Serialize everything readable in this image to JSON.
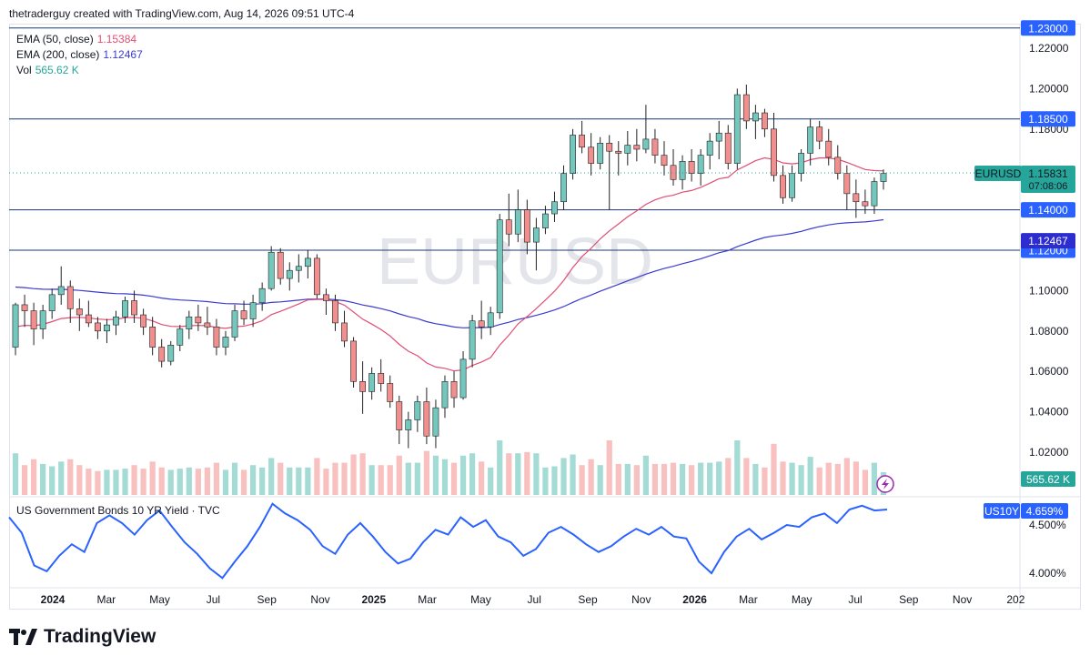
{
  "header": {
    "attribution": "thetraderguy created with TradingView.com, Aug 14, 2026 09:51 UTC-4"
  },
  "legend": {
    "ema50": {
      "label": "EMA (50, close)",
      "value": "1.15384",
      "color": "#e04e74"
    },
    "ema200": {
      "label": "EMA (200, close)",
      "value": "1.12467",
      "color": "#3b3bd1"
    },
    "vol": {
      "label": "Vol",
      "value": "565.62 K",
      "color": "#26a69a"
    }
  },
  "watermark": "EURUSD",
  "price_axis": {
    "ticks": [
      "1.22000",
      "1.20000",
      "1.18000",
      "1.10000",
      "1.08000",
      "1.06000",
      "1.04000",
      "1.02000"
    ]
  },
  "level_labels": [
    {
      "text": "1.23000",
      "price": 1.23,
      "bg": "#2962ff"
    },
    {
      "text": "1.18500",
      "price": 1.185,
      "bg": "#2962ff"
    },
    {
      "text": "1.14000",
      "price": 1.14,
      "bg": "#2962ff"
    },
    {
      "text": "1.12000",
      "price": 1.12,
      "bg": "#2962ff"
    }
  ],
  "ema_labels": [
    {
      "text": "1.15384",
      "price": 1.15384,
      "bg": "#e91e63"
    },
    {
      "text": "1.12467",
      "price": 1.12467,
      "bg": "#2c2ccf"
    }
  ],
  "current": {
    "symbol": "EURUSD",
    "price": "1.15831",
    "countdown": "07:08:06",
    "bg": "#26a69a"
  },
  "volume_badge": "565.62 K",
  "lower_pane": {
    "title": "US Government Bonds 10 YR Yield · TVC",
    "symbol": "US10Y",
    "value": "4.659%",
    "ticks": [
      "4.500%",
      "4.000%"
    ],
    "color": "#2962ff"
  },
  "time_axis": [
    "2024",
    "Mar",
    "May",
    "Jul",
    "Sep",
    "Nov",
    "2025",
    "Mar",
    "May",
    "Jul",
    "Sep",
    "Nov",
    "2026",
    "Mar",
    "May",
    "Jul",
    "Sep",
    "Nov",
    "202"
  ],
  "brand": "TradingView",
  "chart_data": {
    "type": "candlestick",
    "title": "EURUSD",
    "ylim": [
      1.0,
      1.235
    ],
    "horizontal_levels": [
      1.23,
      1.185,
      1.14,
      1.12
    ],
    "candles_ohlc": [
      [
        1.072,
        1.094,
        1.068,
        1.093
      ],
      [
        1.093,
        1.098,
        1.082,
        1.09
      ],
      [
        1.09,
        1.094,
        1.073,
        1.081
      ],
      [
        1.081,
        1.093,
        1.076,
        1.09
      ],
      [
        1.09,
        1.101,
        1.086,
        1.098
      ],
      [
        1.098,
        1.112,
        1.093,
        1.102
      ],
      [
        1.102,
        1.105,
        1.084,
        1.091
      ],
      [
        1.091,
        1.096,
        1.08,
        1.088
      ],
      [
        1.088,
        1.095,
        1.082,
        1.084
      ],
      [
        1.084,
        1.087,
        1.076,
        1.08
      ],
      [
        1.08,
        1.086,
        1.074,
        1.083
      ],
      [
        1.083,
        1.09,
        1.078,
        1.087
      ],
      [
        1.087,
        1.097,
        1.084,
        1.095
      ],
      [
        1.095,
        1.1,
        1.084,
        1.088
      ],
      [
        1.088,
        1.091,
        1.078,
        1.082
      ],
      [
        1.082,
        1.087,
        1.068,
        1.072
      ],
      [
        1.072,
        1.076,
        1.062,
        1.065
      ],
      [
        1.065,
        1.075,
        1.063,
        1.073
      ],
      [
        1.073,
        1.083,
        1.07,
        1.081
      ],
      [
        1.081,
        1.09,
        1.076,
        1.087
      ],
      [
        1.087,
        1.093,
        1.08,
        1.084
      ],
      [
        1.084,
        1.092,
        1.078,
        1.082
      ],
      [
        1.082,
        1.086,
        1.068,
        1.072
      ],
      [
        1.072,
        1.08,
        1.068,
        1.077
      ],
      [
        1.077,
        1.093,
        1.075,
        1.09
      ],
      [
        1.09,
        1.095,
        1.083,
        1.086
      ],
      [
        1.086,
        1.098,
        1.082,
        1.094
      ],
      [
        1.094,
        1.104,
        1.09,
        1.101
      ],
      [
        1.101,
        1.122,
        1.1,
        1.119
      ],
      [
        1.119,
        1.121,
        1.103,
        1.106
      ],
      [
        1.106,
        1.114,
        1.1,
        1.11
      ],
      [
        1.11,
        1.118,
        1.104,
        1.112
      ],
      [
        1.112,
        1.12,
        1.106,
        1.116
      ],
      [
        1.116,
        1.118,
        1.096,
        1.098
      ],
      [
        1.098,
        1.101,
        1.088,
        1.095
      ],
      [
        1.095,
        1.098,
        1.08,
        1.084
      ],
      [
        1.084,
        1.09,
        1.072,
        1.075
      ],
      [
        1.075,
        1.077,
        1.052,
        1.055
      ],
      [
        1.055,
        1.065,
        1.039,
        1.05
      ],
      [
        1.05,
        1.062,
        1.046,
        1.059
      ],
      [
        1.059,
        1.066,
        1.05,
        1.054
      ],
      [
        1.054,
        1.058,
        1.042,
        1.045
      ],
      [
        1.045,
        1.048,
        1.024,
        1.031
      ],
      [
        1.031,
        1.04,
        1.022,
        1.036
      ],
      [
        1.036,
        1.048,
        1.03,
        1.045
      ],
      [
        1.045,
        1.052,
        1.024,
        1.028
      ],
      [
        1.028,
        1.046,
        1.022,
        1.042
      ],
      [
        1.042,
        1.058,
        1.037,
        1.055
      ],
      [
        1.055,
        1.06,
        1.042,
        1.047
      ],
      [
        1.047,
        1.07,
        1.046,
        1.066
      ],
      [
        1.066,
        1.088,
        1.062,
        1.085
      ],
      [
        1.085,
        1.095,
        1.076,
        1.082
      ],
      [
        1.082,
        1.092,
        1.078,
        1.089
      ],
      [
        1.089,
        1.138,
        1.086,
        1.135
      ],
      [
        1.135,
        1.148,
        1.122,
        1.128
      ],
      [
        1.128,
        1.15,
        1.124,
        1.14
      ],
      [
        1.14,
        1.145,
        1.118,
        1.124
      ],
      [
        1.124,
        1.136,
        1.11,
        1.131
      ],
      [
        1.131,
        1.142,
        1.128,
        1.138
      ],
      [
        1.138,
        1.149,
        1.134,
        1.144
      ],
      [
        1.144,
        1.162,
        1.14,
        1.158
      ],
      [
        1.158,
        1.18,
        1.155,
        1.177
      ],
      [
        1.177,
        1.184,
        1.168,
        1.171
      ],
      [
        1.171,
        1.178,
        1.157,
        1.163
      ],
      [
        1.163,
        1.176,
        1.16,
        1.173
      ],
      [
        1.173,
        1.177,
        1.14,
        1.169
      ],
      [
        1.169,
        1.174,
        1.157,
        1.168
      ],
      [
        1.168,
        1.179,
        1.162,
        1.172
      ],
      [
        1.172,
        1.18,
        1.164,
        1.17
      ],
      [
        1.17,
        1.192,
        1.168,
        1.175
      ],
      [
        1.175,
        1.18,
        1.163,
        1.167
      ],
      [
        1.167,
        1.174,
        1.157,
        1.162
      ],
      [
        1.162,
        1.17,
        1.152,
        1.155
      ],
      [
        1.155,
        1.167,
        1.15,
        1.164
      ],
      [
        1.164,
        1.17,
        1.154,
        1.158
      ],
      [
        1.158,
        1.17,
        1.152,
        1.167
      ],
      [
        1.167,
        1.178,
        1.16,
        1.174
      ],
      [
        1.174,
        1.184,
        1.165,
        1.178
      ],
      [
        1.178,
        1.182,
        1.16,
        1.163
      ],
      [
        1.163,
        1.2,
        1.16,
        1.197
      ],
      [
        1.197,
        1.202,
        1.18,
        1.184
      ],
      [
        1.184,
        1.192,
        1.175,
        1.188
      ],
      [
        1.188,
        1.19,
        1.176,
        1.18
      ],
      [
        1.18,
        1.188,
        1.154,
        1.157
      ],
      [
        1.157,
        1.162,
        1.143,
        1.146
      ],
      [
        1.146,
        1.162,
        1.144,
        1.158
      ],
      [
        1.158,
        1.17,
        1.154,
        1.168
      ],
      [
        1.168,
        1.185,
        1.162,
        1.181
      ],
      [
        1.181,
        1.184,
        1.17,
        1.174
      ],
      [
        1.174,
        1.18,
        1.162,
        1.166
      ],
      [
        1.166,
        1.172,
        1.155,
        1.158
      ],
      [
        1.158,
        1.162,
        1.14,
        1.148
      ],
      [
        1.148,
        1.155,
        1.136,
        1.144
      ],
      [
        1.144,
        1.15,
        1.138,
        1.142
      ],
      [
        1.142,
        1.156,
        1.138,
        1.154
      ],
      [
        1.154,
        1.16,
        1.15,
        1.158
      ]
    ],
    "volume": {
      "last": "565.62 K"
    },
    "series": [
      {
        "name": "EMA (50, close)",
        "last": 1.15384
      },
      {
        "name": "EMA (200, close)",
        "last": 1.12467
      },
      {
        "name": "US Government Bonds 10 YR Yield · TVC",
        "last": 4.659,
        "values": [
          4.58,
          4.42,
          4.08,
          4.02,
          4.18,
          4.3,
          4.22,
          4.52,
          4.6,
          4.52,
          4.4,
          4.55,
          4.65,
          4.48,
          4.32,
          4.2,
          4.05,
          3.95,
          4.12,
          4.28,
          4.48,
          4.72,
          4.62,
          4.55,
          4.45,
          4.28,
          4.2,
          4.4,
          4.52,
          4.38,
          4.22,
          4.1,
          4.15,
          4.32,
          4.45,
          4.4,
          4.58,
          4.48,
          4.55,
          4.38,
          4.32,
          4.18,
          4.25,
          4.42,
          4.48,
          4.4,
          4.3,
          4.22,
          4.28,
          4.38,
          4.46,
          4.4,
          4.48,
          4.38,
          4.36,
          4.12,
          4.0,
          4.22,
          4.38,
          4.46,
          4.35,
          4.42,
          4.5,
          4.48,
          4.58,
          4.62,
          4.52,
          4.66,
          4.7,
          4.65,
          4.66
        ]
      }
    ]
  }
}
